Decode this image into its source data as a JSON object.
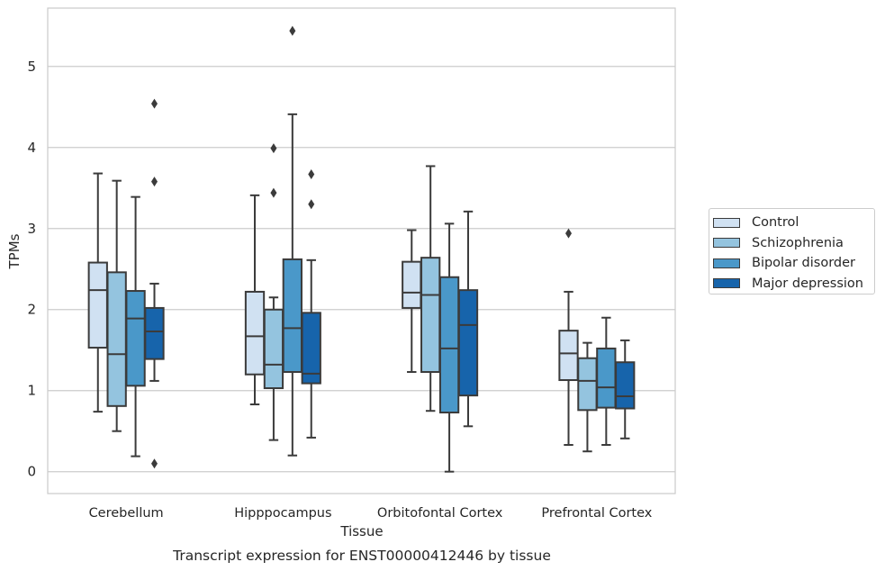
{
  "chart_data": {
    "type": "box",
    "title": "Transcript expression for ENST00000412446 by tissue",
    "xlabel": "Tissue",
    "ylabel": "TPMs",
    "ylim": [
      -0.27,
      5.72
    ],
    "yticks": [
      0,
      1,
      2,
      3,
      4,
      5
    ],
    "grid": "horizontal",
    "legend_position": "right",
    "categories": [
      "Cerebellum",
      "Hipppocampus",
      "Orbitofontal Cortex",
      "Prefrontal Cortex"
    ],
    "series": [
      {
        "name": "Control",
        "color": "#d0e1f2",
        "boxes": [
          {
            "whislo": 0.74,
            "q1": 1.53,
            "med": 2.24,
            "q3": 2.58,
            "whishi": 3.68,
            "fliers": []
          },
          {
            "whislo": 0.83,
            "q1": 1.2,
            "med": 1.67,
            "q3": 2.22,
            "whishi": 3.41,
            "fliers": []
          },
          {
            "whislo": 1.23,
            "q1": 2.02,
            "med": 2.21,
            "q3": 2.59,
            "whishi": 2.98,
            "fliers": []
          },
          {
            "whislo": 0.33,
            "q1": 1.13,
            "med": 1.46,
            "q3": 1.74,
            "whishi": 2.22,
            "fliers": [
              2.94
            ]
          }
        ]
      },
      {
        "name": "Schizophrenia",
        "color": "#94c4df",
        "boxes": [
          {
            "whislo": 0.5,
            "q1": 0.81,
            "med": 1.45,
            "q3": 2.46,
            "whishi": 3.59,
            "fliers": []
          },
          {
            "whislo": 0.39,
            "q1": 1.03,
            "med": 1.32,
            "q3": 2.0,
            "whishi": 2.15,
            "fliers": [
              3.44,
              3.99
            ]
          },
          {
            "whislo": 0.75,
            "q1": 1.23,
            "med": 2.18,
            "q3": 2.64,
            "whishi": 3.77,
            "fliers": []
          },
          {
            "whislo": 0.25,
            "q1": 0.76,
            "med": 1.12,
            "q3": 1.4,
            "whishi": 1.59,
            "fliers": []
          }
        ]
      },
      {
        "name": "Bipolar disorder",
        "color": "#4a98c9",
        "boxes": [
          {
            "whislo": 0.19,
            "q1": 1.06,
            "med": 1.89,
            "q3": 2.23,
            "whishi": 3.39,
            "fliers": []
          },
          {
            "whislo": 0.2,
            "q1": 1.23,
            "med": 1.77,
            "q3": 2.62,
            "whishi": 4.41,
            "fliers": [
              5.44
            ]
          },
          {
            "whislo": 0.0,
            "q1": 0.73,
            "med": 1.52,
            "q3": 2.4,
            "whishi": 3.06,
            "fliers": []
          },
          {
            "whislo": 0.33,
            "q1": 0.79,
            "med": 1.04,
            "q3": 1.52,
            "whishi": 1.9,
            "fliers": []
          }
        ]
      },
      {
        "name": "Major depression",
        "color": "#1764ab",
        "boxes": [
          {
            "whislo": 1.12,
            "q1": 1.39,
            "med": 1.73,
            "q3": 2.02,
            "whishi": 2.32,
            "fliers": [
              0.1,
              3.58,
              4.54
            ]
          },
          {
            "whislo": 0.42,
            "q1": 1.09,
            "med": 1.21,
            "q3": 1.96,
            "whishi": 2.61,
            "fliers": [
              3.3,
              3.67
            ]
          },
          {
            "whislo": 0.56,
            "q1": 0.94,
            "med": 1.81,
            "q3": 2.24,
            "whishi": 3.21,
            "fliers": []
          },
          {
            "whislo": 0.41,
            "q1": 0.78,
            "med": 0.93,
            "q3": 1.35,
            "whishi": 1.62,
            "fliers": []
          }
        ]
      }
    ]
  }
}
